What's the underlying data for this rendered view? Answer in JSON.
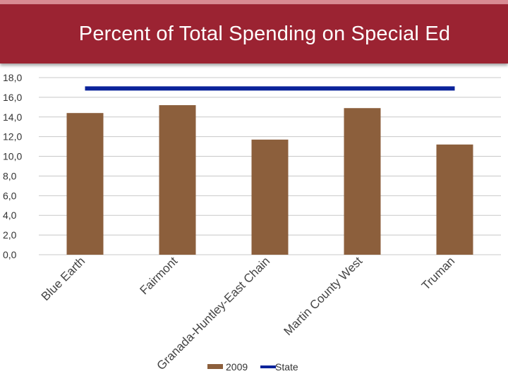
{
  "page": {
    "title": "Percent of Total Spending on Special Ed"
  },
  "colors": {
    "bar": "#8c5f3c",
    "state_line": "#0a239a",
    "grid": "#c8c8c8",
    "title_bg": "#9b2332"
  },
  "chart_data": {
    "type": "bar",
    "title": "Percent of Total Spending on Special Ed",
    "xlabel": "",
    "ylabel": "",
    "ylim": [
      0,
      18
    ],
    "y_ticks": [
      0,
      2,
      4,
      6,
      8,
      10,
      12,
      14,
      16,
      18
    ],
    "y_tick_labels": [
      "0,0",
      "2,0",
      "4,0",
      "6,0",
      "8,0",
      "10,0",
      "12,0",
      "14,0",
      "16,0",
      "18,0"
    ],
    "categories": [
      "Blue Earth",
      "Fairmont",
      "Granada-Huntley-East Chain",
      "Martin County West",
      "Truman"
    ],
    "series": [
      {
        "name": "2009",
        "kind": "bar",
        "values": [
          14.4,
          15.2,
          11.7,
          14.9,
          11.2
        ]
      },
      {
        "name": "State",
        "kind": "line",
        "values": [
          16.9,
          16.9,
          16.9,
          16.9,
          16.9
        ]
      }
    ],
    "legend": {
      "placement": "bottom",
      "entries": [
        "2009",
        "State"
      ]
    },
    "grid": true
  }
}
